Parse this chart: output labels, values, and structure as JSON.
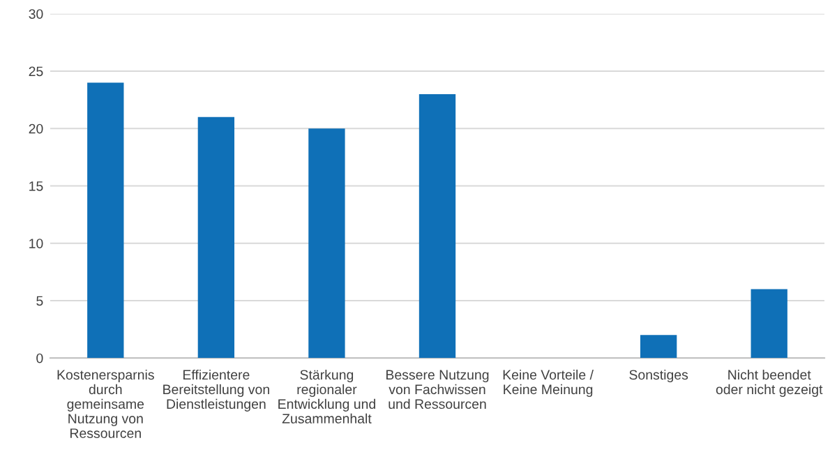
{
  "chart_data": {
    "type": "bar",
    "categories": [
      "Kostenersparnis\ndurch\ngemeinsame\nNutzung von\nRessourcen",
      "Effizientere\nBereitstellung von\nDienstleistungen",
      "Stärkung\nregionaler\nEntwicklung und\nZusammenhalt",
      "Bessere Nutzung\nvon Fachwissen\nund Ressourcen",
      "Keine Vorteile /\nKeine Meinung",
      "Sonstiges",
      "Nicht beendet\noder nicht gezeigt"
    ],
    "values": [
      24,
      21,
      20,
      23,
      0,
      2,
      6
    ],
    "color": "#0f70b7",
    "ylim": [
      0,
      30
    ],
    "yticks": [
      0,
      5,
      10,
      15,
      20,
      25,
      30
    ],
    "grid": "y"
  }
}
